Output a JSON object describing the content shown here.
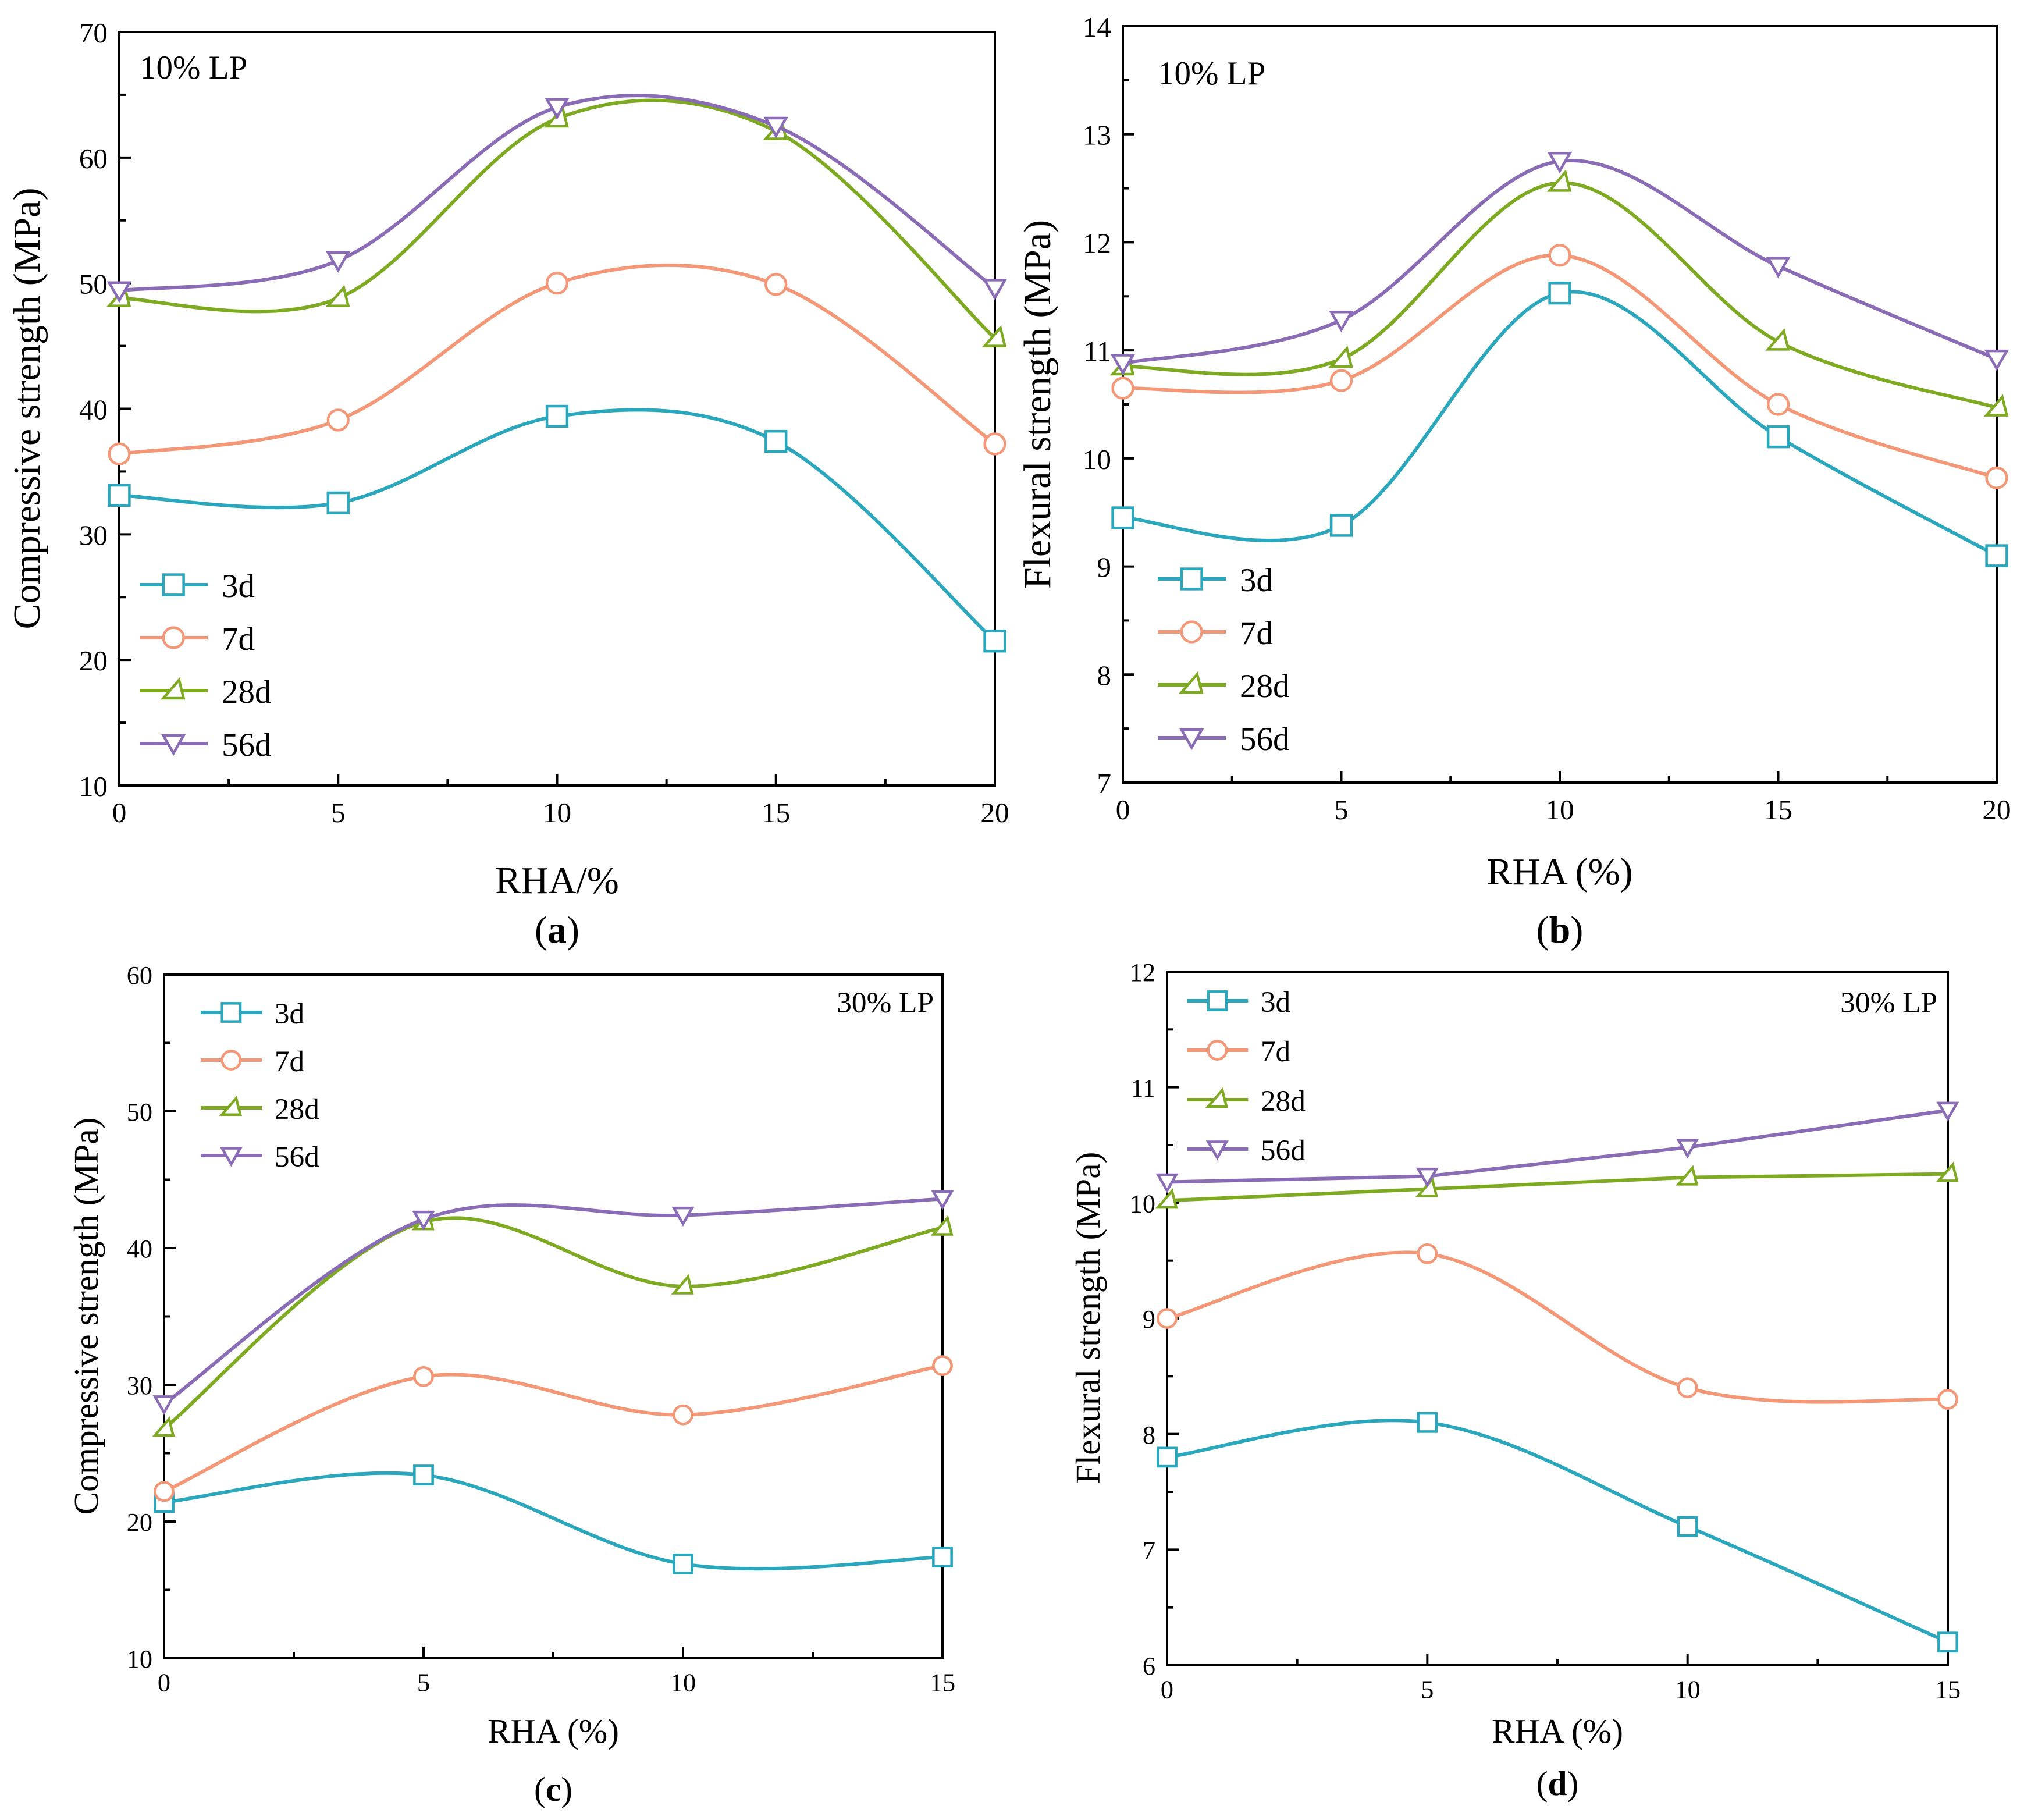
{
  "colors": {
    "3d": "#2aa7bd",
    "7d": "#f39777",
    "28d": "#7eaa22",
    "56d": "#8a6bb5"
  },
  "chart_data": [
    {
      "type": "line",
      "panel_label": "a",
      "annotation": "10% LP",
      "xlabel": "RHA/%",
      "ylabel": "Compressive strength (MPa)",
      "xlim": [
        0,
        20
      ],
      "ylim": [
        10,
        70
      ],
      "x_ticks": [
        0,
        5,
        10,
        15,
        20
      ],
      "y_ticks": [
        10,
        20,
        30,
        40,
        50,
        60,
        70
      ],
      "legend_position": "bottom-left",
      "x": [
        0,
        5,
        10,
        15,
        20
      ],
      "series": [
        {
          "name": "3d",
          "marker": "square",
          "values": [
            33.1,
            32.5,
            39.4,
            37.4,
            21.5
          ]
        },
        {
          "name": "7d",
          "marker": "circle",
          "values": [
            36.4,
            39.1,
            50.0,
            49.9,
            37.2
          ]
        },
        {
          "name": "28d",
          "marker": "triangle",
          "values": [
            48.8,
            48.8,
            63.1,
            62.1,
            45.6
          ]
        },
        {
          "name": "56d",
          "marker": "triangle-down",
          "values": [
            49.4,
            51.8,
            64.0,
            62.5,
            49.6
          ]
        }
      ]
    },
    {
      "type": "line",
      "panel_label": "b",
      "annotation": "10% LP",
      "xlabel": "RHA (%)",
      "ylabel": "Flexural strength (MPa)",
      "xlim": [
        0,
        20
      ],
      "ylim": [
        7,
        14
      ],
      "x_ticks": [
        0,
        5,
        10,
        15,
        20
      ],
      "y_ticks": [
        7,
        8,
        9,
        10,
        11,
        12,
        13,
        14
      ],
      "legend_position": "bottom-left",
      "x": [
        0,
        5,
        10,
        15,
        20
      ],
      "series": [
        {
          "name": "3d",
          "marker": "square",
          "values": [
            9.45,
            9.38,
            11.53,
            10.2,
            9.1
          ]
        },
        {
          "name": "7d",
          "marker": "circle",
          "values": [
            10.65,
            10.72,
            11.88,
            10.5,
            9.82
          ]
        },
        {
          "name": "28d",
          "marker": "triangle",
          "values": [
            10.85,
            10.92,
            12.55,
            11.08,
            10.47
          ]
        },
        {
          "name": "56d",
          "marker": "triangle-down",
          "values": [
            10.88,
            11.28,
            12.75,
            11.78,
            10.92
          ]
        }
      ]
    },
    {
      "type": "line",
      "panel_label": "c",
      "annotation": "30% LP",
      "xlabel": "RHA (%)",
      "ylabel": "Compressive strength (MPa)",
      "xlim": [
        0,
        15
      ],
      "ylim": [
        10,
        60
      ],
      "x_ticks": [
        0,
        5,
        10,
        15
      ],
      "y_ticks": [
        10,
        20,
        30,
        40,
        50,
        60
      ],
      "legend_position": "top-left",
      "x": [
        0,
        5,
        10,
        15
      ],
      "series": [
        {
          "name": "3d",
          "marker": "square",
          "values": [
            21.4,
            23.4,
            16.9,
            17.4
          ]
        },
        {
          "name": "7d",
          "marker": "circle",
          "values": [
            22.2,
            30.6,
            27.8,
            31.4
          ]
        },
        {
          "name": "28d",
          "marker": "triangle",
          "values": [
            26.8,
            41.9,
            37.2,
            41.5
          ]
        },
        {
          "name": "56d",
          "marker": "triangle-down",
          "values": [
            28.6,
            42.1,
            42.4,
            43.6
          ]
        }
      ]
    },
    {
      "type": "line",
      "panel_label": "d",
      "annotation": "30% LP",
      "xlabel": "RHA (%)",
      "ylabel": "Flexural strength (MPa)",
      "xlim": [
        0,
        15
      ],
      "ylim": [
        6,
        12
      ],
      "x_ticks": [
        0,
        5,
        10,
        15
      ],
      "y_ticks": [
        6,
        7,
        8,
        9,
        10,
        11,
        12
      ],
      "legend_position": "top-left",
      "x": [
        0,
        5,
        10,
        15
      ],
      "series": [
        {
          "name": "3d",
          "marker": "square",
          "values": [
            7.8,
            8.1,
            7.2,
            6.2
          ]
        },
        {
          "name": "7d",
          "marker": "circle",
          "values": [
            9.0,
            9.56,
            8.4,
            8.3
          ]
        },
        {
          "name": "28d",
          "marker": "triangle",
          "values": [
            10.02,
            10.12,
            10.22,
            10.25
          ]
        },
        {
          "name": "56d",
          "marker": "triangle-down",
          "values": [
            10.18,
            10.23,
            10.48,
            10.8
          ]
        }
      ]
    }
  ]
}
